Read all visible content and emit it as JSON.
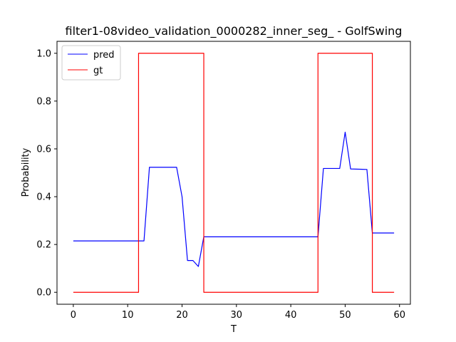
{
  "chart_data": {
    "type": "line",
    "title": "filter1-08video_validation_0000282_inner_seg_ - GolfSwing",
    "xlabel": "T",
    "ylabel": "Probability",
    "xlim": [
      -3,
      62
    ],
    "ylim": [
      -0.05,
      1.05
    ],
    "xticks": [
      0,
      10,
      20,
      30,
      40,
      50,
      60
    ],
    "yticks": [
      0.0,
      0.2,
      0.4,
      0.6,
      0.8,
      1.0
    ],
    "xtick_labels": [
      "0",
      "10",
      "20",
      "30",
      "40",
      "50",
      "60"
    ],
    "ytick_labels": [
      "0.0",
      "0.2",
      "0.4",
      "0.6",
      "0.8",
      "1.0"
    ],
    "grid": false,
    "legend_position": "top-left",
    "series": [
      {
        "name": "pred",
        "color": "#0000ff",
        "x": [
          0,
          13,
          14,
          19,
          20,
          21,
          22,
          23,
          24,
          45,
          46,
          49,
          50,
          51,
          54,
          55,
          59
        ],
        "y": [
          0.215,
          0.215,
          0.523,
          0.523,
          0.4,
          0.133,
          0.133,
          0.108,
          0.232,
          0.232,
          0.518,
          0.518,
          0.67,
          0.516,
          0.514,
          0.248,
          0.248
        ]
      },
      {
        "name": "gt",
        "color": "#ff0000",
        "x": [
          0,
          12,
          12,
          24,
          24,
          45,
          45,
          55,
          55,
          59
        ],
        "y": [
          0,
          0,
          1,
          1,
          0,
          0,
          1,
          1,
          0,
          0
        ]
      }
    ]
  }
}
